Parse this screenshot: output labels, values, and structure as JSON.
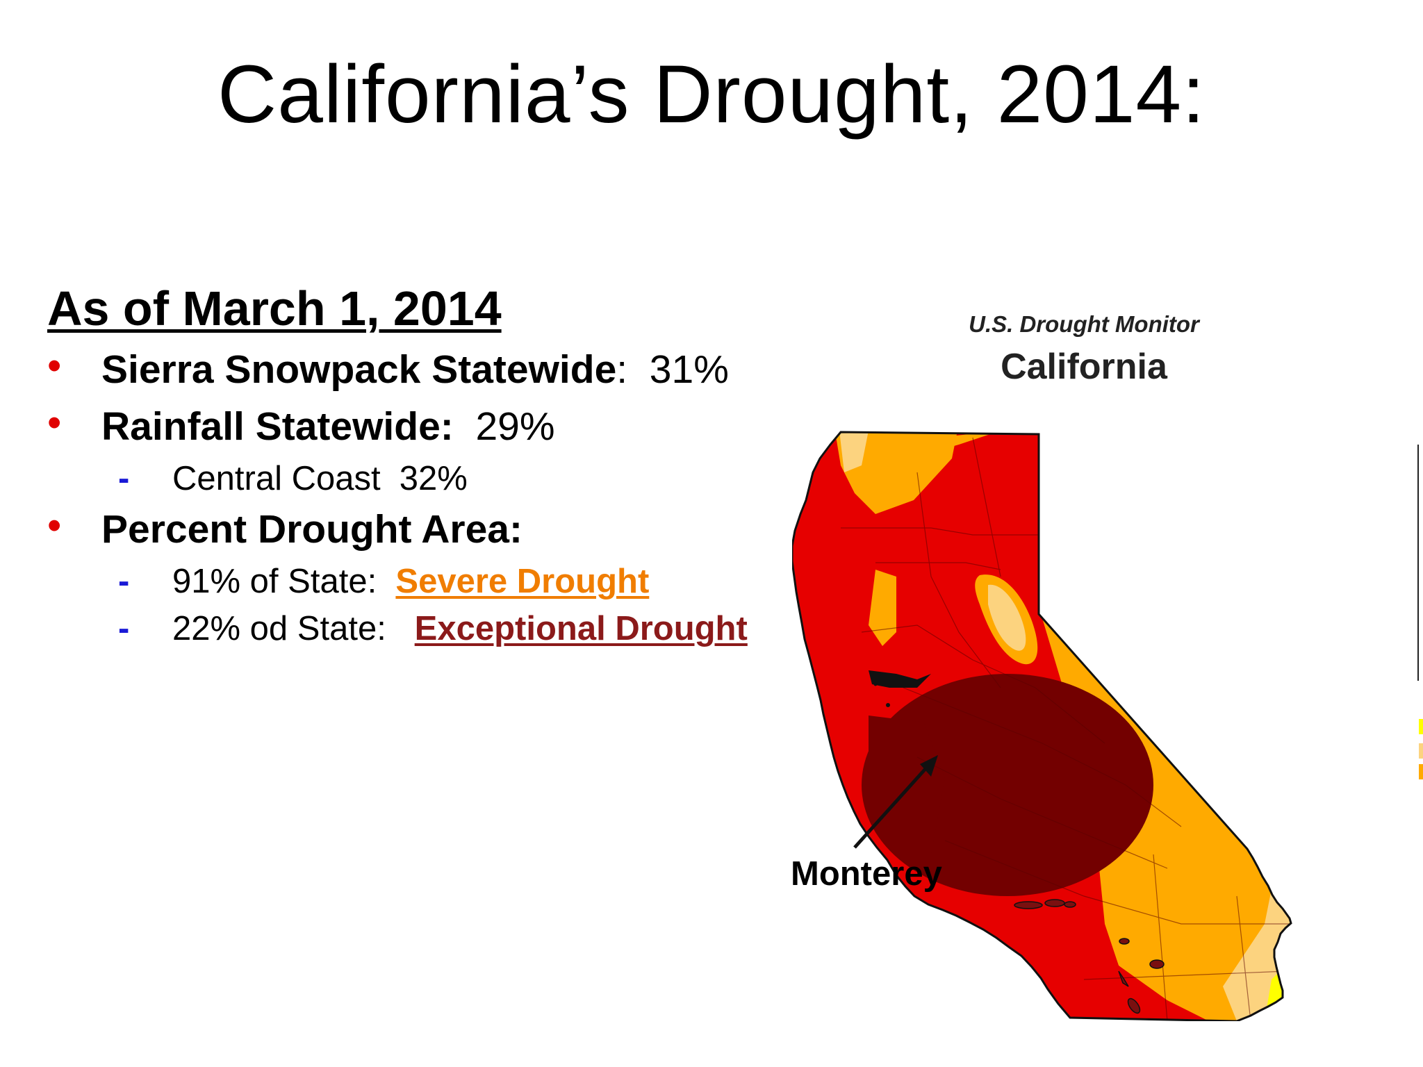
{
  "slide": {
    "title": "California’s Drought, 2014:"
  },
  "content": {
    "heading": "As of March 1, 2014",
    "bullets": [
      {
        "label": "Sierra Snowpack Statewide",
        "sep": ":",
        "value": "  31%"
      },
      {
        "label": "Rainfall Statewide:",
        "sep": "",
        "value": "  29%"
      },
      {
        "label": "Percent Drought Area:",
        "sep": "",
        "value": ""
      }
    ],
    "subitems": [
      {
        "text": "Central Coast  32%",
        "highlight": ""
      },
      {
        "text": "91% of State:  ",
        "highlight": "Severe Drought"
      },
      {
        "text": "22% od State:   ",
        "highlight": "Exceptional Drought"
      }
    ]
  },
  "map": {
    "monitor_title": "U.S. Drought Monitor",
    "state_name": "California",
    "annotation": "Monterey",
    "colors": {
      "abnormally_dry": "#ffff00",
      "moderate": "#fcd37f",
      "severe": "#ffaa00",
      "extreme": "#e60000",
      "exceptional": "#730000"
    }
  },
  "colors": {
    "bullet": "#e00000",
    "dash": "#1a1ad6",
    "severe_text": "#f07d00",
    "exceptional_text": "#8b1a1a"
  }
}
